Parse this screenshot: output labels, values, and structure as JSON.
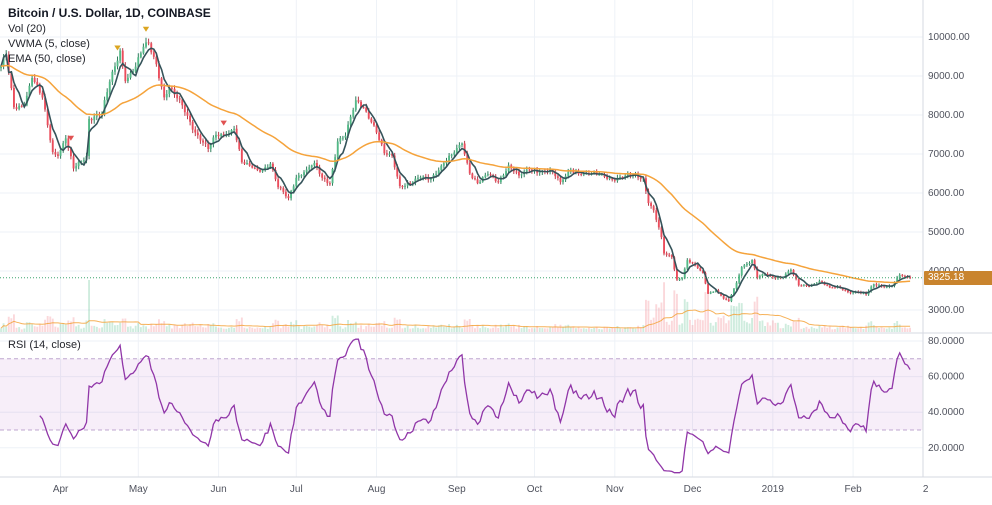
{
  "header": {
    "title": "Bitcoin / U.S. Dollar, 1D, COINBASE",
    "indicators": [
      "Vol (20)",
      "VWMA (5, close)",
      "EMA (50, close)"
    ],
    "rsi_label": "RSI (14, close)"
  },
  "price_axis": {
    "ticks": [
      "10000.00",
      "9000.00",
      "8000.00",
      "7000.00",
      "6000.00",
      "5000.00",
      "4000.00",
      "3000.00"
    ],
    "last_price_label": "3825.18"
  },
  "rsi_axis": {
    "ticks": [
      "80.0000",
      "60.0000",
      "40.0000",
      "20.0000"
    ]
  },
  "time_axis": {
    "labels": [
      {
        "text": "Apr",
        "day": 23
      },
      {
        "text": "May",
        "day": 53
      },
      {
        "text": "Jun",
        "day": 84
      },
      {
        "text": "Jul",
        "day": 114
      },
      {
        "text": "Aug",
        "day": 145
      },
      {
        "text": "Sep",
        "day": 176
      },
      {
        "text": "Oct",
        "day": 206
      },
      {
        "text": "Nov",
        "day": 237
      },
      {
        "text": "Dec",
        "day": 267
      },
      {
        "text": "2019",
        "day": 298
      },
      {
        "text": "Feb",
        "day": 329
      },
      {
        "text": "2",
        "day": 357,
        "grid": false
      }
    ]
  },
  "colors": {
    "up": "#53b987",
    "down": "#eb4d5c",
    "up_dark": "#2f7d5d",
    "down_dark": "#b73b49",
    "vol_up": "#53b987",
    "vol_down": "#eb4d5c",
    "vwma": "#35535a",
    "ema": "#f5a33b",
    "vol_ma": "#f5a33b",
    "rsi": "#9036a8",
    "rsi_band": "#9c27b0",
    "rsi_dash": "#b092c4",
    "grid": "#eef2f7",
    "axis_text": "#50535e",
    "separator": "#d6d9e0",
    "last_price_line": "#3fa66f",
    "badge_bg": "#c9842e",
    "badge_text": "#ffffff"
  },
  "chart_data": {
    "type": "candlestick",
    "title": "Bitcoin / U.S. Dollar, 1D, COINBASE",
    "interval": "1D",
    "legend_position": "top-left",
    "grid": true,
    "ylim": [
      2500,
      10900
    ],
    "y_ticks": [
      10000,
      9000,
      8000,
      7000,
      6000,
      5000,
      4000,
      3000
    ],
    "last_price": 3825.18,
    "indicators": {
      "volume_ma": 20,
      "vwma": 5,
      "ema": 50,
      "rsi": 14
    },
    "rsi_ticks": [
      80,
      60,
      40,
      20
    ],
    "rsi_bands": [
      70,
      30
    ],
    "price_path": [
      [
        0,
        9250
      ],
      [
        2,
        9550
      ],
      [
        5,
        8200
      ],
      [
        9,
        8250
      ],
      [
        12,
        8950
      ],
      [
        16,
        8450
      ],
      [
        20,
        7050
      ],
      [
        22,
        6950
      ],
      [
        25,
        7400
      ],
      [
        28,
        6630
      ],
      [
        33,
        6950
      ],
      [
        34,
        7900
      ],
      [
        39,
        8050
      ],
      [
        42,
        8850
      ],
      [
        46,
        9650
      ],
      [
        48,
        8870
      ],
      [
        52,
        9240
      ],
      [
        55,
        9750
      ],
      [
        57,
        9840
      ],
      [
        60,
        9300
      ],
      [
        63,
        8450
      ],
      [
        65,
        8700
      ],
      [
        70,
        8250
      ],
      [
        75,
        7550
      ],
      [
        80,
        7130
      ],
      [
        83,
        7490
      ],
      [
        87,
        7500
      ],
      [
        90,
        7650
      ],
      [
        93,
        6790
      ],
      [
        97,
        6650
      ],
      [
        100,
        6550
      ],
      [
        104,
        6750
      ],
      [
        107,
        6150
      ],
      [
        111,
        5870
      ],
      [
        114,
        6390
      ],
      [
        118,
        6600
      ],
      [
        121,
        6770
      ],
      [
        124,
        6390
      ],
      [
        127,
        6250
      ],
      [
        130,
        7320
      ],
      [
        133,
        7470
      ],
      [
        137,
        8380
      ],
      [
        140,
        8190
      ],
      [
        144,
        7730
      ],
      [
        148,
        7020
      ],
      [
        151,
        6960
      ],
      [
        154,
        6180
      ],
      [
        158,
        6250
      ],
      [
        162,
        6400
      ],
      [
        166,
        6370
      ],
      [
        170,
        6700
      ],
      [
        174,
        6980
      ],
      [
        178,
        7270
      ],
      [
        181,
        6500
      ],
      [
        184,
        6250
      ],
      [
        188,
        6480
      ],
      [
        192,
        6280
      ],
      [
        196,
        6710
      ],
      [
        200,
        6450
      ],
      [
        204,
        6600
      ],
      [
        208,
        6540
      ],
      [
        212,
        6600
      ],
      [
        216,
        6280
      ],
      [
        220,
        6600
      ],
      [
        224,
        6470
      ],
      [
        228,
        6490
      ],
      [
        232,
        6480
      ],
      [
        236,
        6340
      ],
      [
        240,
        6400
      ],
      [
        244,
        6470
      ],
      [
        248,
        6380
      ],
      [
        250,
        5740
      ],
      [
        252,
        5560
      ],
      [
        255,
        4870
      ],
      [
        256,
        4450
      ],
      [
        259,
        4350
      ],
      [
        261,
        3780
      ],
      [
        263,
        3820
      ],
      [
        265,
        4280
      ],
      [
        268,
        4140
      ],
      [
        271,
        3950
      ],
      [
        273,
        3420
      ],
      [
        276,
        3500
      ],
      [
        279,
        3290
      ],
      [
        281,
        3230
      ],
      [
        284,
        3700
      ],
      [
        286,
        4100
      ],
      [
        290,
        4280
      ],
      [
        292,
        3830
      ],
      [
        295,
        3920
      ],
      [
        298,
        3840
      ],
      [
        301,
        3830
      ],
      [
        305,
        4030
      ],
      [
        308,
        3630
      ],
      [
        312,
        3610
      ],
      [
        316,
        3740
      ],
      [
        320,
        3580
      ],
      [
        324,
        3570
      ],
      [
        327,
        3460
      ],
      [
        331,
        3460
      ],
      [
        334,
        3400
      ],
      [
        337,
        3660
      ],
      [
        341,
        3600
      ],
      [
        344,
        3620
      ],
      [
        347,
        3900
      ],
      [
        349,
        3850
      ],
      [
        351,
        3825.18
      ]
    ],
    "markers": [
      {
        "day": 27,
        "color": "#e05252",
        "shape": "arrow-down"
      },
      {
        "day": 45,
        "color": "#dba521",
        "shape": "arrow-down"
      },
      {
        "day": 56,
        "color": "#dba521",
        "shape": "arrow-down"
      },
      {
        "day": 86,
        "color": "#e05252",
        "shape": "arrow-down"
      }
    ]
  }
}
